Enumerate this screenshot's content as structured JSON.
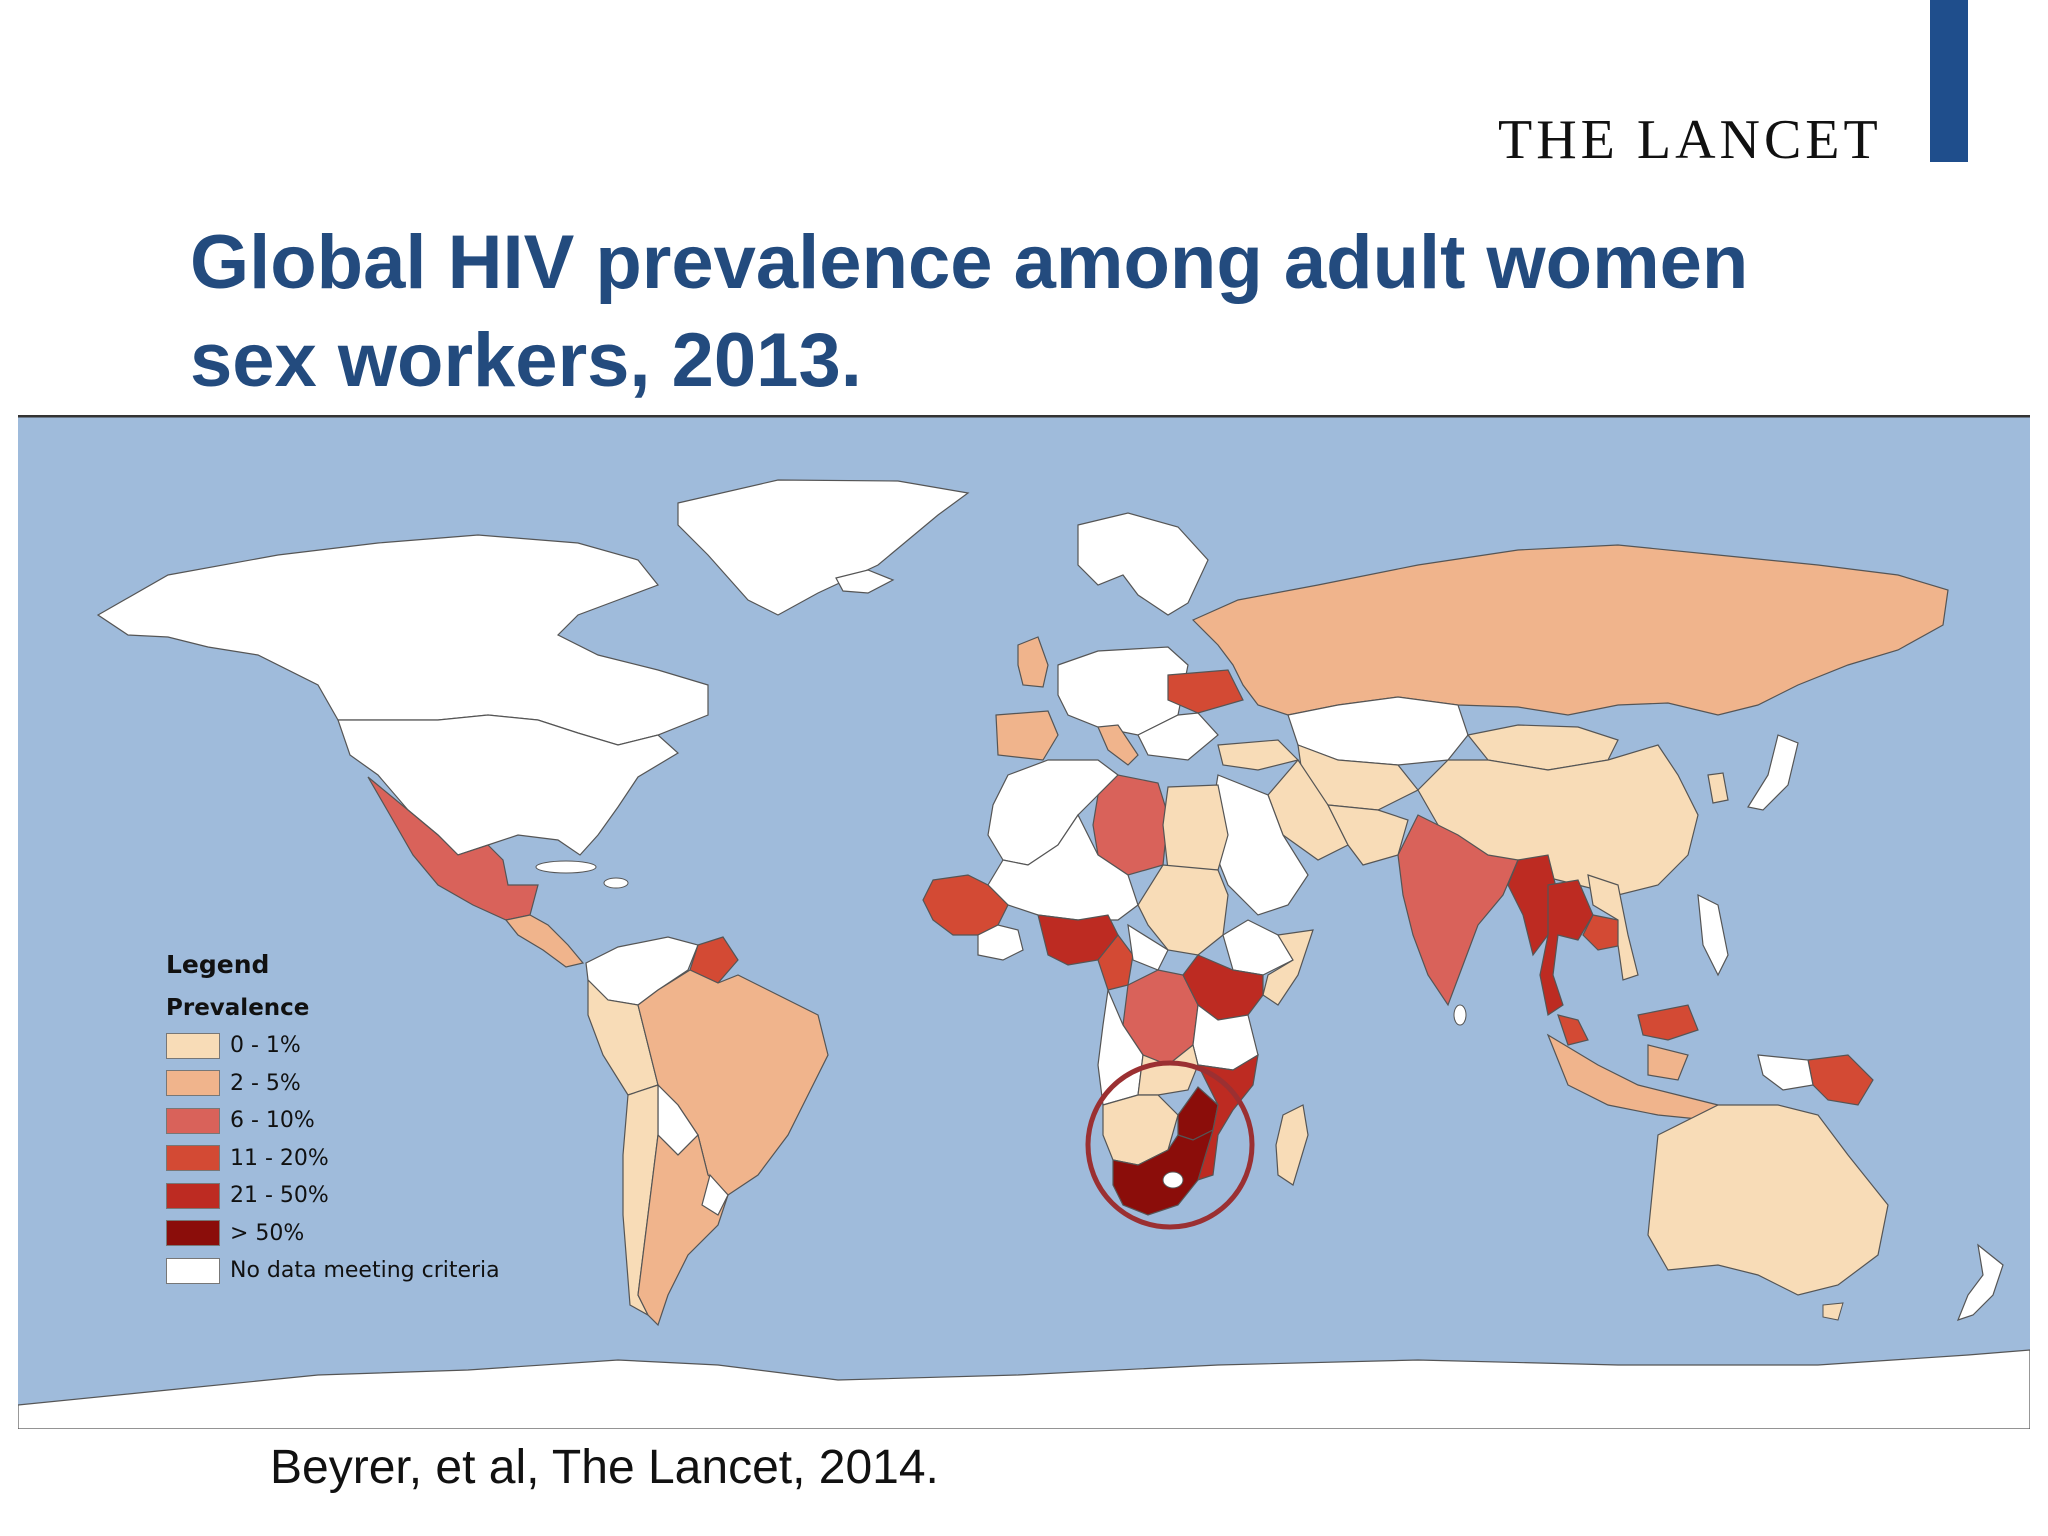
{
  "brand": "THE LANCET",
  "title": "Global HIV prevalence among adult women sex workers, 2013.",
  "citation": "Beyrer, et al, The Lancet, 2014.",
  "legend": {
    "title": "Legend",
    "subtitle": "Prevalence",
    "items": [
      {
        "label": "0 - 1%",
        "color": "#f8dcb7"
      },
      {
        "label": "2 - 5%",
        "color": "#f0b48c"
      },
      {
        "label": "6 - 10%",
        "color": "#d9625a"
      },
      {
        "label": "11 - 20%",
        "color": "#d34a34"
      },
      {
        "label": "21 - 50%",
        "color": "#bd2b22"
      },
      {
        "label": "> 50%",
        "color": "#8b0d0a"
      },
      {
        "label": "No data meeting criteria",
        "color": "#ffffff"
      }
    ]
  },
  "colors": {
    "ocean": "#9fbbdb",
    "highlight_circle": "#9b3032",
    "brand_bar": "#1f4e8c",
    "title": "#234b7e"
  }
}
